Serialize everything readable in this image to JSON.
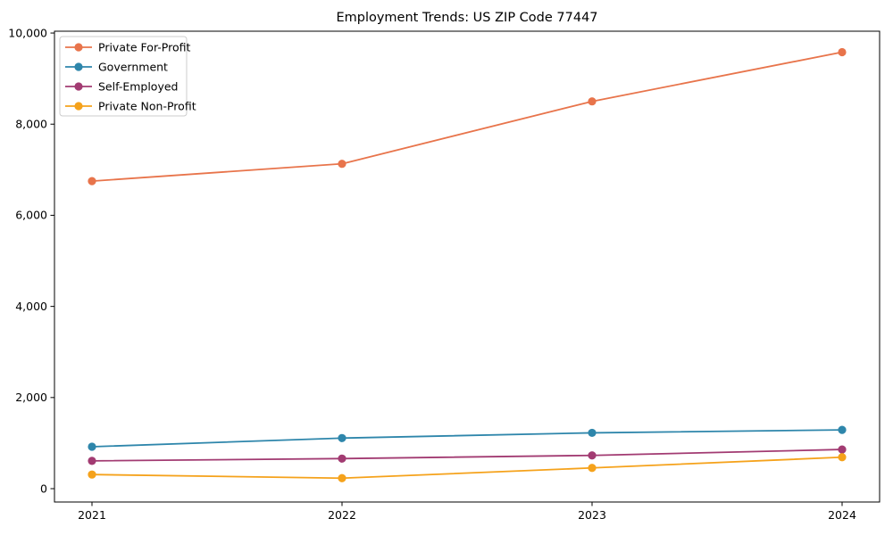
{
  "title": "Employment Trends: US ZIP Code 77447",
  "chart_data": {
    "type": "line",
    "title": "Employment Trends: US ZIP Code 77447",
    "xlabel": "",
    "ylabel": "",
    "x": [
      2021,
      2022,
      2023,
      2024
    ],
    "xtick_labels": [
      "2021",
      "2022",
      "2023",
      "2024"
    ],
    "yticks": [
      0,
      2000,
      4000,
      6000,
      8000,
      10000
    ],
    "ytick_labels": [
      "0",
      "2,000",
      "4,000",
      "6,000",
      "8,000",
      "10,000"
    ],
    "xlim": [
      2020.85,
      2024.15
    ],
    "ylim": [
      -293,
      10040
    ],
    "grid": false,
    "legend_position": "upper left",
    "series": [
      {
        "name": "Private For-Profit",
        "color": "#E8744B",
        "values": [
          6750,
          7130,
          8500,
          9580
        ]
      },
      {
        "name": "Government",
        "color": "#2E86AB",
        "values": [
          920,
          1110,
          1225,
          1290
        ]
      },
      {
        "name": "Self-Employed",
        "color": "#A23B72",
        "values": [
          610,
          660,
          730,
          860
        ]
      },
      {
        "name": "Private Non-Profit",
        "color": "#F5A21B",
        "values": [
          310,
          230,
          455,
          690
        ]
      }
    ]
  }
}
